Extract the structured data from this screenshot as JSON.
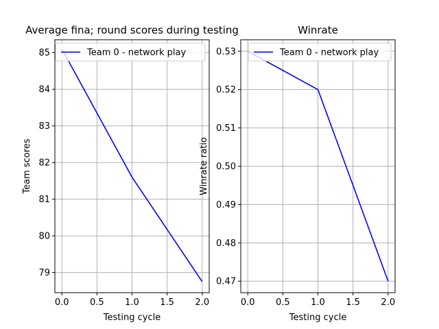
{
  "chart_data": [
    {
      "type": "line",
      "title": "Average fina; round scores during testing",
      "xlabel": "Testing cycle",
      "ylabel": "Team scores",
      "xlim": [
        -0.1,
        2.1
      ],
      "ylim": [
        78.45,
        85.35
      ],
      "xticks": [
        0.0,
        0.5,
        1.0,
        1.5,
        2.0
      ],
      "xtick_labels": [
        "0.0",
        "0.5",
        "1.0",
        "1.5",
        "2.0"
      ],
      "yticks": [
        79,
        80,
        81,
        82,
        83,
        84,
        85
      ],
      "ytick_labels": [
        "79",
        "80",
        "81",
        "82",
        "83",
        "84",
        "85"
      ],
      "grid": true,
      "legend_position": "upper-right",
      "series": [
        {
          "name": "Team 0 - network play",
          "color": "#0000ff",
          "x": [
            0,
            1,
            2
          ],
          "y": [
            85.1,
            81.6,
            78.75
          ]
        }
      ]
    },
    {
      "type": "line",
      "title": "Winrate",
      "xlabel": "Testing cycle",
      "ylabel": "Winrate ratio",
      "xlim": [
        -0.1,
        2.1
      ],
      "ylim": [
        0.467,
        0.533
      ],
      "xticks": [
        0.0,
        0.5,
        1.0,
        1.5,
        2.0
      ],
      "xtick_labels": [
        "0.0",
        "0.5",
        "1.0",
        "1.5",
        "2.0"
      ],
      "yticks": [
        0.47,
        0.48,
        0.49,
        0.5,
        0.51,
        0.52,
        0.53
      ],
      "ytick_labels": [
        "0.47",
        "0.48",
        "0.49",
        "0.50",
        "0.51",
        "0.52",
        "0.53"
      ],
      "grid": true,
      "legend_position": "upper-right",
      "series": [
        {
          "name": "Team 0 - network play",
          "color": "#0000ff",
          "x": [
            0,
            1,
            2
          ],
          "y": [
            0.53,
            0.52,
            0.47
          ]
        }
      ]
    }
  ]
}
